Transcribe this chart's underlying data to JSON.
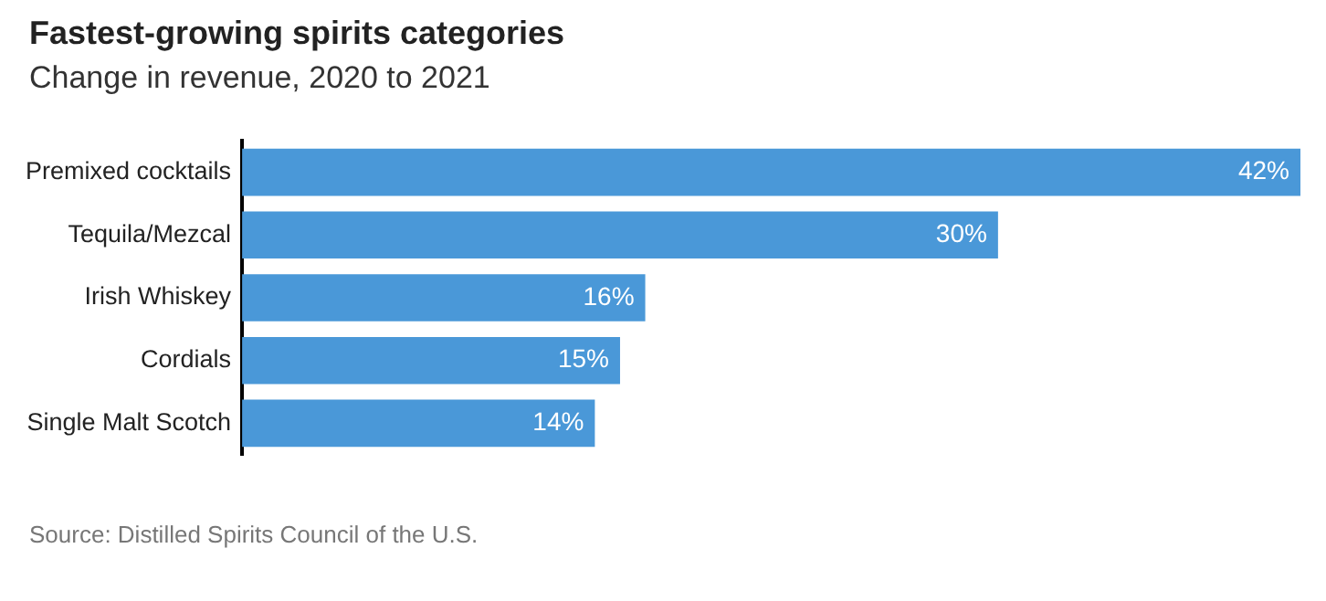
{
  "chart_data": {
    "type": "bar",
    "orientation": "horizontal",
    "title": "Fastest-growing spirits categories",
    "subtitle": "Change in revenue, 2020 to 2021",
    "categories": [
      "Premixed cocktails",
      "Tequila/Mezcal",
      "Irish Whiskey",
      "Cordials",
      "Single Malt Scotch"
    ],
    "values": [
      42,
      30,
      16,
      15,
      14
    ],
    "color": "#4a98d8",
    "value_labels": [
      "42%",
      "30%",
      "16%",
      "15%",
      "14%"
    ],
    "annotations": [
      "Source: Distilled Spirits Council of the U.S."
    ],
    "grid": false,
    "legend": false
  }
}
